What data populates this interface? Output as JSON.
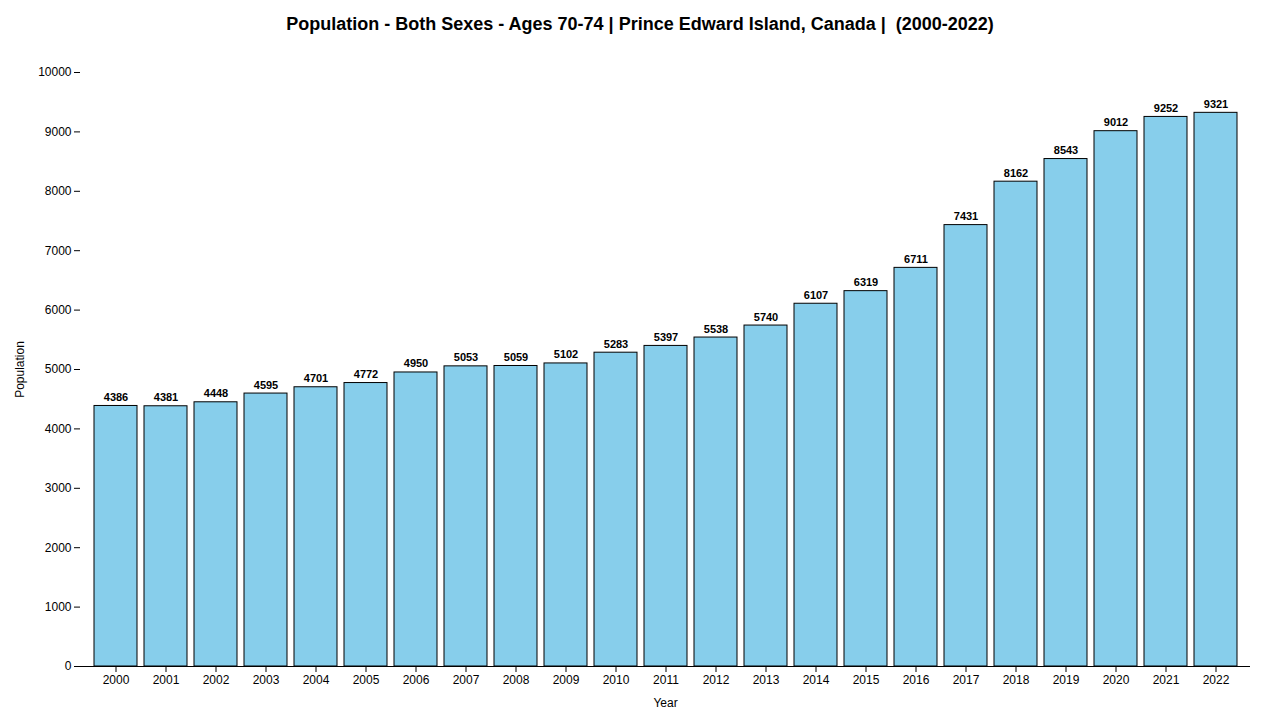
{
  "chart_data": {
    "type": "bar",
    "title": "Population - Both Sexes - Ages 70-74 | Prince Edward Island, Canada |  (2000-2022)",
    "x_label": "Year",
    "y_label": "Population",
    "categories": [
      "2000",
      "2001",
      "2002",
      "2003",
      "2004",
      "2005",
      "2006",
      "2007",
      "2008",
      "2009",
      "2010",
      "2011",
      "2012",
      "2013",
      "2014",
      "2015",
      "2016",
      "2017",
      "2018",
      "2019",
      "2020",
      "2021",
      "2022"
    ],
    "values": [
      4386,
      4381,
      4448,
      4595,
      4701,
      4772,
      4950,
      5053,
      5059,
      5102,
      5283,
      5397,
      5538,
      5740,
      6107,
      6319,
      6711,
      7431,
      8162,
      8543,
      9012,
      9252,
      9321
    ],
    "color": "#87ceeb",
    "ylim": [
      0,
      10000
    ],
    "yticks": [
      0,
      1000,
      2000,
      3000,
      4000,
      5000,
      6000,
      7000,
      8000,
      9000,
      10000
    ],
    "grid": false,
    "data_labels": true
  }
}
